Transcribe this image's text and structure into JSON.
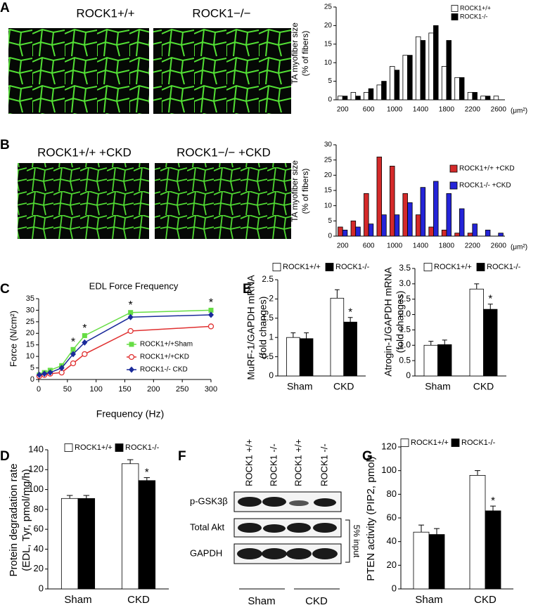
{
  "panel_letters": [
    "A",
    "B",
    "C",
    "D",
    "E",
    "F",
    "G"
  ],
  "image_labels": [
    "ROCK1+/+",
    "ROCK1−/−",
    "ROCK1+/+ +CKD",
    "ROCK1−/− +CKD"
  ],
  "chart_data": [
    {
      "type": "bar",
      "y_label": [
        "TA myofiber size",
        "(% of fibers)"
      ],
      "x_unit": "(μm²)",
      "categories": [
        "200",
        null,
        "600",
        null,
        "1000",
        null,
        "1400",
        null,
        "1800",
        null,
        "2200",
        null,
        "2600"
      ],
      "series": [
        {
          "name": "ROCK1+/+",
          "color": "#ffffff",
          "values": [
            1,
            2,
            2,
            4,
            9,
            12,
            17,
            18,
            9,
            6,
            2,
            1,
            1
          ]
        },
        {
          "name": "ROCK1-/-",
          "color": "#000000",
          "values": [
            1,
            1,
            3,
            5,
            8,
            12,
            16,
            20,
            16,
            6,
            2,
            1,
            0
          ]
        }
      ],
      "ylim": [
        0,
        25
      ],
      "yticks": [
        0,
        5,
        10,
        15,
        20,
        25
      ]
    },
    {
      "type": "bar",
      "y_label": [
        "TA myofiber size",
        "(% of fibers)"
      ],
      "x_unit": "(μm²)",
      "categories": [
        "200",
        null,
        "600",
        null,
        "1000",
        null,
        "1400",
        null,
        "1800",
        null,
        "2200",
        null,
        "2600"
      ],
      "series": [
        {
          "name": "ROCK1+/+ +CKD",
          "color": "#d42a2a",
          "values": [
            3,
            5,
            14,
            26,
            23,
            14,
            7,
            3,
            2,
            1,
            1,
            0,
            0
          ]
        },
        {
          "name": "ROCK1-/- +CKD",
          "color": "#2424d8",
          "values": [
            2,
            3,
            4,
            7,
            7,
            11,
            16,
            18,
            14,
            9,
            4,
            2,
            1
          ]
        }
      ],
      "ylim": [
        0,
        30
      ],
      "yticks": [
        0,
        5,
        10,
        15,
        20,
        25,
        30
      ]
    },
    {
      "type": "line",
      "title": "EDL Force Frequency",
      "x_label": "Frequency (Hz)",
      "y_label": [
        "Force (N/cm²)"
      ],
      "x": [
        1,
        10,
        20,
        40,
        60,
        80,
        160,
        300
      ],
      "series": [
        {
          "name": "ROCK1+/+Sham",
          "color": "#66dd44",
          "marker": "square",
          "values": [
            2,
            3,
            4,
            6,
            13,
            19,
            29,
            30
          ]
        },
        {
          "name": "ROCK1+/+CKD",
          "color": "#e03030",
          "marker": "open-circle",
          "values": [
            1.5,
            2,
            2.5,
            3,
            7,
            11,
            21,
            23
          ]
        },
        {
          "name": "ROCK1-/- CKD",
          "color": "#1a2a9a",
          "marker": "diamond",
          "values": [
            2,
            2.5,
            3,
            5,
            11,
            16,
            27,
            28
          ]
        }
      ],
      "annotations": [
        {
          "x": 60,
          "text": "*"
        },
        {
          "x": 80,
          "text": "*"
        },
        {
          "x": 160,
          "text": "*"
        },
        {
          "x": 300,
          "text": "*"
        }
      ],
      "xlim": [
        0,
        300
      ],
      "xticks": [
        0,
        50,
        100,
        150,
        200,
        250,
        300
      ],
      "ylim": [
        0,
        35
      ],
      "yticks": [
        0,
        5,
        10,
        15,
        20,
        25,
        30,
        35
      ]
    },
    {
      "type": "bar",
      "y_label": [
        "MuRF-1/GAPDH mRNA",
        "(fold changes)"
      ],
      "categories": [
        "Sham",
        "CKD"
      ],
      "series": [
        {
          "name": "ROCK1+/+",
          "color": "#ffffff",
          "values": [
            1,
            2.02
          ],
          "errors": [
            0.12,
            0.22
          ]
        },
        {
          "name": "ROCK1-/-",
          "color": "#000000",
          "values": [
            0.97,
            1.4
          ],
          "errors": [
            0.15,
            0.12
          ]
        }
      ],
      "annotations": [
        {
          "text": "*",
          "category": "CKD",
          "series": "ROCK1-/-"
        }
      ],
      "ylim": [
        0,
        2.5
      ],
      "yticks": [
        0,
        0.5,
        1,
        1.5,
        2,
        2.5
      ]
    },
    {
      "type": "bar",
      "y_label": [
        "Atrogin-1/GAPDH mRNA",
        "(fold changes)"
      ],
      "categories": [
        "Sham",
        "CKD"
      ],
      "series": [
        {
          "name": "ROCK1+/+",
          "color": "#ffffff",
          "values": [
            1,
            2.83
          ],
          "errors": [
            0.13,
            0.17
          ]
        },
        {
          "name": "ROCK1-/-",
          "color": "#000000",
          "values": [
            1.02,
            2.17
          ],
          "errors": [
            0.15,
            0.17
          ]
        }
      ],
      "annotations": [
        {
          "text": "*",
          "category": "CKD",
          "series": "ROCK1-/-"
        }
      ],
      "ylim": [
        0,
        3.5
      ],
      "yticks": [
        0,
        0.5,
        {
          "value": 1,
          "label": "1.0"
        },
        1.5,
        {
          "value": 2,
          "label": "2.0"
        },
        2.5,
        {
          "value": 3,
          "label": "3.0"
        },
        3.5
      ]
    },
    {
      "type": "bar",
      "y_label": [
        "Protein degradation rate",
        "(EDL, Tyr, pmol/mg/h)"
      ],
      "categories": [
        "Sham",
        "CKD"
      ],
      "series": [
        {
          "name": "ROCK1+/+",
          "color": "#ffffff",
          "values": [
            91,
            126
          ],
          "errors": [
            3,
            4
          ]
        },
        {
          "name": "ROCK1-/-",
          "color": "#000000",
          "values": [
            91,
            109
          ],
          "errors": [
            3,
            3
          ]
        }
      ],
      "annotations": [
        {
          "text": "*",
          "category": "CKD",
          "series": "ROCK1-/-"
        }
      ],
      "ylim": [
        0,
        140
      ],
      "yticks": [
        0,
        20,
        40,
        60,
        80,
        100,
        120,
        140
      ]
    },
    {
      "type": "bar",
      "y_label": [
        "PTEN activity (PIP2, pmol)"
      ],
      "categories": [
        "Sham",
        "CKD"
      ],
      "series": [
        {
          "name": "ROCK1+/+",
          "color": "#ffffff",
          "values": [
            48,
            96
          ],
          "errors": [
            6,
            4
          ]
        },
        {
          "name": "ROCK1-/-",
          "color": "#000000",
          "values": [
            46,
            66
          ],
          "errors": [
            5,
            4
          ]
        }
      ],
      "annotations": [
        {
          "text": "*",
          "category": "CKD",
          "series": "ROCK1-/-"
        }
      ],
      "ylim": [
        0,
        120
      ],
      "yticks": [
        0,
        20,
        40,
        60,
        80,
        100,
        120
      ]
    }
  ],
  "blot": {
    "columns": [
      "ROCK1 +/+",
      "ROCK1 -/-",
      "ROCK1 +/+",
      "ROCK1 -/-"
    ],
    "rows": [
      "p-GSK3β",
      "Total Akt",
      "GAPDH"
    ],
    "groups": [
      "Sham",
      "CKD"
    ],
    "side_label": "5% input"
  }
}
